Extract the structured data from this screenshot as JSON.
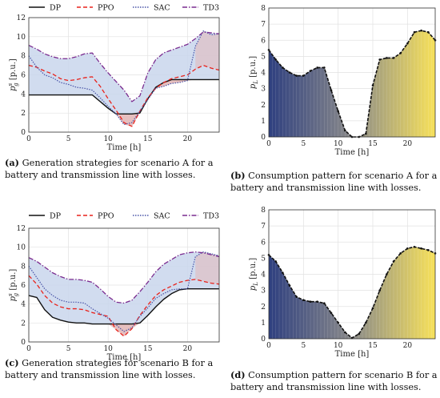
{
  "captions": [
    {
      "tag": "(a)",
      "text": " Generation strategies for scenario A for a battery and transmission line with losses."
    },
    {
      "tag": "(b)",
      "text": " Consumption pattern for scenario A for a battery and transmission line with losses."
    },
    {
      "tag": "(c)",
      "text": " Generation strategies for scenario B for a battery and transmission line with losses."
    },
    {
      "tag": "(d)",
      "text": " Consumption pattern for scenario B for a battery and transmission line with losses."
    }
  ],
  "colors": {
    "DP": "#111111",
    "PPO": "#e8221b",
    "SAC": "#4a55a8",
    "TD3": "#7a2b8f",
    "fill_above": "#c9d6ec",
    "fill_below": "#e3b8b8",
    "grid": "#e2e2e2",
    "gradient_start": "#2e3f7f",
    "gradient_mid": "#8a8a8a",
    "gradient_end": "#f7e15a"
  },
  "chart_data": [
    {
      "type": "line",
      "xlabel": "Time [h]",
      "ylabel": "p_g^s [p.u.]",
      "xlim": [
        0,
        24
      ],
      "ylim": [
        0,
        12
      ],
      "xticks": [
        "0",
        "5",
        "10",
        "15",
        "20"
      ],
      "yticks": [
        "0",
        "2",
        "4",
        "6",
        "8",
        "10",
        "12"
      ],
      "legend": "top",
      "x": [
        0,
        1,
        2,
        3,
        4,
        5,
        6,
        7,
        8,
        9,
        10,
        11,
        12,
        13,
        14,
        15,
        16,
        17,
        18,
        19,
        20,
        21,
        22,
        23,
        24
      ],
      "series": [
        {
          "name": "DP",
          "values": [
            3.9,
            3.9,
            3.9,
            3.9,
            3.9,
            3.9,
            3.9,
            3.9,
            3.9,
            3.2,
            2.5,
            1.9,
            1.9,
            1.9,
            2.0,
            3.5,
            4.7,
            5.2,
            5.5,
            5.5,
            5.5,
            5.5,
            5.5,
            5.5,
            5.5
          ]
        },
        {
          "name": "PPO",
          "values": [
            7.0,
            6.8,
            6.4,
            6.1,
            5.6,
            5.4,
            5.5,
            5.7,
            5.8,
            4.8,
            3.5,
            2.3,
            1.0,
            0.6,
            2.2,
            3.6,
            4.6,
            5.2,
            5.6,
            5.8,
            6.0,
            6.6,
            7.0,
            6.7,
            6.5
          ]
        },
        {
          "name": "SAC",
          "values": [
            8.0,
            6.8,
            6.0,
            5.7,
            5.2,
            5.0,
            4.7,
            4.6,
            4.4,
            3.6,
            2.7,
            1.9,
            0.8,
            1.0,
            2.2,
            3.4,
            4.6,
            4.8,
            5.1,
            5.2,
            5.4,
            9.0,
            10.6,
            10.2,
            10.3
          ]
        },
        {
          "name": "TD3",
          "values": [
            9.1,
            8.7,
            8.2,
            7.9,
            7.7,
            7.7,
            7.9,
            8.2,
            8.3,
            7.2,
            6.2,
            5.3,
            4.4,
            3.2,
            3.8,
            6.2,
            7.6,
            8.3,
            8.6,
            8.9,
            9.2,
            9.8,
            10.5,
            10.4,
            10.3
          ]
        }
      ]
    },
    {
      "type": "area",
      "xlabel": "Time [h]",
      "ylabel": "p_L [p.u.]",
      "xlim": [
        0,
        24
      ],
      "ylim": [
        0,
        8
      ],
      "xticks": [
        "0",
        "5",
        "10",
        "15",
        "20"
      ],
      "yticks": [
        "0",
        "1",
        "2",
        "3",
        "4",
        "5",
        "6",
        "7",
        "8"
      ],
      "x": [
        0,
        1,
        2,
        3,
        4,
        5,
        6,
        7,
        8,
        9,
        10,
        11,
        12,
        13,
        14,
        15,
        16,
        17,
        18,
        19,
        20,
        21,
        22,
        23,
        24
      ],
      "values": [
        5.4,
        4.8,
        4.3,
        4.0,
        3.8,
        3.8,
        4.1,
        4.3,
        4.3,
        2.9,
        1.6,
        0.4,
        0.0,
        0.0,
        0.2,
        3.2,
        4.8,
        4.9,
        4.9,
        5.2,
        5.8,
        6.5,
        6.6,
        6.5,
        6.0
      ]
    },
    {
      "type": "line",
      "xlabel": "Time [h]",
      "ylabel": "p_g^s [p.u.]",
      "xlim": [
        0,
        24
      ],
      "ylim": [
        0,
        12
      ],
      "xticks": [
        "0",
        "5",
        "10",
        "15",
        "20"
      ],
      "yticks": [
        "0",
        "2",
        "4",
        "6",
        "8",
        "10",
        "12"
      ],
      "legend": "top",
      "x": [
        0,
        1,
        2,
        3,
        4,
        5,
        6,
        7,
        8,
        9,
        10,
        11,
        12,
        13,
        14,
        15,
        16,
        17,
        18,
        19,
        20,
        21,
        22,
        23,
        24
      ],
      "series": [
        {
          "name": "DP",
          "values": [
            4.9,
            4.7,
            3.4,
            2.6,
            2.3,
            2.1,
            2.0,
            2.0,
            1.9,
            1.9,
            1.9,
            1.9,
            1.9,
            1.9,
            2.0,
            2.8,
            3.7,
            4.5,
            5.1,
            5.5,
            5.6,
            5.6,
            5.6,
            5.6,
            5.6
          ]
        },
        {
          "name": "PPO",
          "values": [
            7.0,
            6.1,
            4.9,
            4.1,
            3.7,
            3.5,
            3.5,
            3.4,
            3.1,
            2.9,
            2.7,
            1.3,
            0.6,
            1.4,
            2.8,
            3.9,
            4.9,
            5.5,
            5.9,
            6.3,
            6.5,
            6.6,
            6.4,
            6.2,
            6.1
          ]
        },
        {
          "name": "SAC",
          "values": [
            8.0,
            6.8,
            5.6,
            4.9,
            4.4,
            4.2,
            4.2,
            4.1,
            3.5,
            3.0,
            2.5,
            1.8,
            1.1,
            1.5,
            2.7,
            3.6,
            4.6,
            5.1,
            5.5,
            5.6,
            5.6,
            9.0,
            9.5,
            9.3,
            9.1
          ]
        },
        {
          "name": "TD3",
          "values": [
            8.9,
            8.5,
            7.9,
            7.3,
            6.9,
            6.6,
            6.6,
            6.5,
            6.3,
            5.6,
            4.8,
            4.2,
            4.1,
            4.4,
            5.3,
            6.3,
            7.4,
            8.2,
            8.7,
            9.2,
            9.4,
            9.5,
            9.4,
            9.2,
            9.0
          ]
        }
      ]
    },
    {
      "type": "area",
      "xlabel": "Time [h]",
      "ylabel": "p_L [p.u.]",
      "xlim": [
        0,
        24
      ],
      "ylim": [
        0,
        8
      ],
      "xticks": [
        "0",
        "5",
        "10",
        "15",
        "20"
      ],
      "yticks": [
        "0",
        "1",
        "2",
        "3",
        "4",
        "5",
        "6",
        "7",
        "8"
      ],
      "x": [
        0,
        1,
        2,
        3,
        4,
        5,
        6,
        7,
        8,
        9,
        10,
        11,
        12,
        13,
        14,
        15,
        16,
        17,
        18,
        19,
        20,
        21,
        22,
        23,
        24
      ],
      "values": [
        5.2,
        4.8,
        4.1,
        3.3,
        2.6,
        2.4,
        2.3,
        2.3,
        2.2,
        1.6,
        1.0,
        0.4,
        0.05,
        0.3,
        1.0,
        1.9,
        3.0,
        4.0,
        4.8,
        5.3,
        5.6,
        5.7,
        5.6,
        5.5,
        5.3
      ]
    }
  ]
}
